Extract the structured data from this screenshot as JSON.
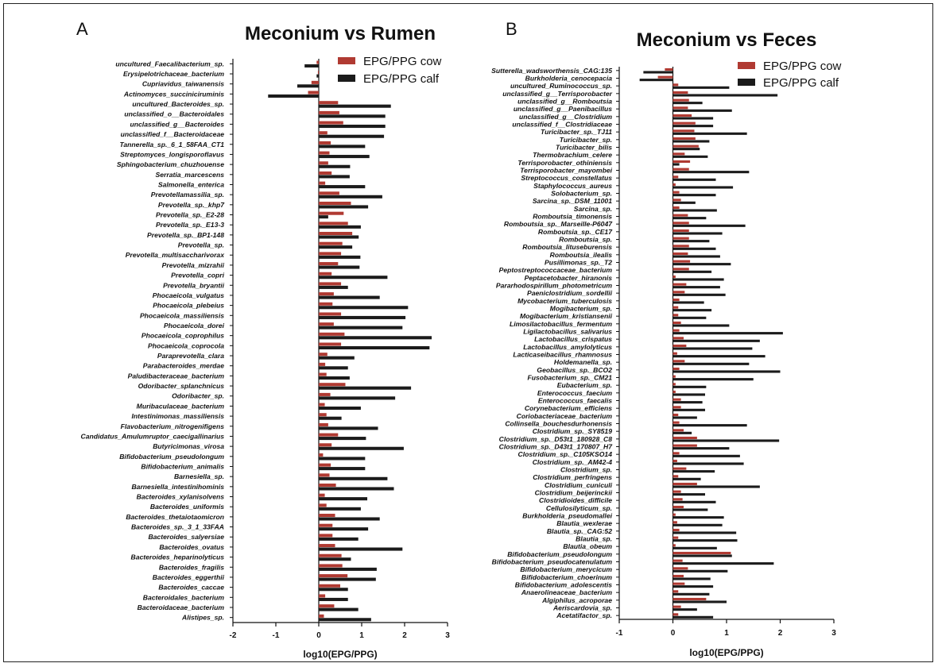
{
  "colors": {
    "cow": "#b03a32",
    "calf": "#1b1b1b"
  },
  "chart_data": [
    {
      "type": "bar",
      "orientation": "horizontal",
      "panel": "A",
      "title": "Meconium vs Rumen",
      "xlabel": "log10(EPG/PPG)",
      "xlim": [
        -2,
        3
      ],
      "xticks": [
        -2,
        -1,
        0,
        1,
        2,
        3
      ],
      "legend_position": "top-right",
      "series": [
        {
          "name": "EPG/PPG cow",
          "color": "#b03a32"
        },
        {
          "name": "EPG/PPG calf",
          "color": "#1b1b1b"
        }
      ],
      "categories": [
        {
          "label": "uncultured_Faecalibacterium_sp.",
          "cow": -0.05,
          "calf": -0.33
        },
        {
          "label": "Erysipelotrichaceae_bacterium",
          "cow": -0.02,
          "calf": -0.05
        },
        {
          "label": "Cupriavidus_taiwanensis",
          "cow": -0.17,
          "calf": -0.5
        },
        {
          "label": "Actinomyces_succiniciruminis",
          "cow": -0.25,
          "calf": -1.18
        },
        {
          "label": "uncultured_Bacteroides_sp.",
          "cow": 0.45,
          "calf": 1.68
        },
        {
          "label": "unclassified_o__Bacteroidales",
          "cow": 0.48,
          "calf": 1.55
        },
        {
          "label": "unclassified_g__Bacteroides",
          "cow": 0.57,
          "calf": 1.55
        },
        {
          "label": "unclassified_f__Bacteroidaceae",
          "cow": 0.2,
          "calf": 1.52
        },
        {
          "label": "Tannerella_sp._6_1_58FAA_CT1",
          "cow": 0.28,
          "calf": 1.08
        },
        {
          "label": "Streptomyces_longisporoflavus",
          "cow": 0.25,
          "calf": 1.18
        },
        {
          "label": "Sphingobacterium_chuzhouense",
          "cow": 0.22,
          "calf": 0.73
        },
        {
          "label": "Serratia_marcescens",
          "cow": 0.3,
          "calf": 0.72
        },
        {
          "label": "Salmonella_enterica",
          "cow": 0.15,
          "calf": 1.08
        },
        {
          "label": "Prevotellamassilia_sp.",
          "cow": 0.48,
          "calf": 1.48
        },
        {
          "label": "Prevotella_sp._khp7",
          "cow": 0.75,
          "calf": 1.15
        },
        {
          "label": "Prevotella_sp._E2-28",
          "cow": 0.58,
          "calf": 0.22
        },
        {
          "label": "Prevotella_sp._E13-3",
          "cow": 0.68,
          "calf": 0.98
        },
        {
          "label": "Prevotella_sp._BP1-148",
          "cow": 0.78,
          "calf": 0.93
        },
        {
          "label": "Prevotella_sp.",
          "cow": 0.55,
          "calf": 0.78
        },
        {
          "label": "Prevotella_multisaccharivorax",
          "cow": 0.52,
          "calf": 0.97
        },
        {
          "label": "Prevotella_mizrahii",
          "cow": 0.45,
          "calf": 0.95
        },
        {
          "label": "Prevotella_copri",
          "cow": 0.3,
          "calf": 1.6
        },
        {
          "label": "Prevotella_bryantii",
          "cow": 0.52,
          "calf": 0.68
        },
        {
          "label": "Phocaeicola_vulgatus",
          "cow": 0.35,
          "calf": 1.42
        },
        {
          "label": "Phocaeicola_plebeius",
          "cow": 0.32,
          "calf": 2.08
        },
        {
          "label": "Phocaeicola_massiliensis",
          "cow": 0.52,
          "calf": 2.02
        },
        {
          "label": "Phocaeicola_dorei",
          "cow": 0.35,
          "calf": 1.95
        },
        {
          "label": "Phocaeicola_coprophilus",
          "cow": 0.6,
          "calf": 2.63
        },
        {
          "label": "Phocaeicola_coprocola",
          "cow": 0.52,
          "calf": 2.58
        },
        {
          "label": "Paraprevotella_clara",
          "cow": 0.2,
          "calf": 0.83
        },
        {
          "label": "Parabacteroides_merdae",
          "cow": 0.15,
          "calf": 0.68
        },
        {
          "label": "Paludibacteraceae_bacterium",
          "cow": 0.18,
          "calf": 0.72
        },
        {
          "label": "Odoribacter_splanchnicus",
          "cow": 0.62,
          "calf": 2.15
        },
        {
          "label": "Odoribacter_sp.",
          "cow": 0.27,
          "calf": 1.78
        },
        {
          "label": "Muribaculaceae_bacterium",
          "cow": 0.14,
          "calf": 0.98
        },
        {
          "label": "Intestinimonas_massiliensis",
          "cow": 0.18,
          "calf": 0.53
        },
        {
          "label": "Flavobacterium_nitrogenifigens",
          "cow": 0.22,
          "calf": 1.38
        },
        {
          "label": "Candidatus_Amulumruptor_caecigallinarius",
          "cow": 0.45,
          "calf": 1.1
        },
        {
          "label": "Butyricimonas_virosa",
          "cow": 0.3,
          "calf": 1.98
        },
        {
          "label": "Bifidobacterium_pseudolongum",
          "cow": 0.1,
          "calf": 1.08
        },
        {
          "label": "Bifidobacterium_animalis",
          "cow": 0.28,
          "calf": 1.08
        },
        {
          "label": "Barnesiella_sp.",
          "cow": 0.25,
          "calf": 1.6
        },
        {
          "label": "Barnesiella_intestinihominis",
          "cow": 0.4,
          "calf": 1.75
        },
        {
          "label": "Bacteroides_xylanisolvens",
          "cow": 0.14,
          "calf": 1.13
        },
        {
          "label": "Bacteroides_uniformis",
          "cow": 0.18,
          "calf": 0.98
        },
        {
          "label": "Bacteroides_thetaiotaomicron",
          "cow": 0.38,
          "calf": 1.42
        },
        {
          "label": "Bacteroides_sp._3_1_33FAA",
          "cow": 0.32,
          "calf": 1.15
        },
        {
          "label": "Bacteroides_salyersiae",
          "cow": 0.32,
          "calf": 0.92
        },
        {
          "label": "Bacteroides_ovatus",
          "cow": 0.38,
          "calf": 1.95
        },
        {
          "label": "Bacteroides_heparinolyticus",
          "cow": 0.53,
          "calf": 0.75
        },
        {
          "label": "Bacteroides_fragilis",
          "cow": 0.55,
          "calf": 1.35
        },
        {
          "label": "Bacteroides_eggerthii",
          "cow": 0.67,
          "calf": 1.33
        },
        {
          "label": "Bacteroides_caccae",
          "cow": 0.5,
          "calf": 0.68
        },
        {
          "label": "Bacteroidales_bacterium",
          "cow": 0.15,
          "calf": 0.68
        },
        {
          "label": "Bacteroidaceae_bacterium",
          "cow": 0.36,
          "calf": 0.92
        },
        {
          "label": "Alistipes_sp.",
          "cow": 0.12,
          "calf": 1.22
        }
      ]
    },
    {
      "type": "bar",
      "orientation": "horizontal",
      "panel": "B",
      "title": "Meconium vs Feces",
      "xlabel": "log10(EPG/PPG)",
      "xlim": [
        -1,
        3
      ],
      "xticks": [
        -1,
        0,
        1,
        2,
        3
      ],
      "legend_position": "top-right",
      "series": [
        {
          "name": "EPG/PPG cow",
          "color": "#b03a32"
        },
        {
          "name": "EPG/PPG calf",
          "color": "#1b1b1b"
        }
      ],
      "categories": [
        {
          "label": "Sutterella_wadsworthensis_CAG:135",
          "cow": -0.15,
          "calf": -0.55
        },
        {
          "label": "Burkholderia_cenocepacia",
          "cow": -0.28,
          "calf": -0.62
        },
        {
          "label": "uncultured_Ruminococcus_sp.",
          "cow": 0.1,
          "calf": 1.05
        },
        {
          "label": "unclassified_g__Terrisporobacter",
          "cow": 0.28,
          "calf": 1.95
        },
        {
          "label": "unclassified_g__Romboutsia",
          "cow": 0.3,
          "calf": 0.55
        },
        {
          "label": "unclassified_g__Paenibacillus",
          "cow": 0.28,
          "calf": 1.1
        },
        {
          "label": "unclassified_g__Clostridium",
          "cow": 0.35,
          "calf": 0.75
        },
        {
          "label": "unclassified_f__Clostridiaceae",
          "cow": 0.42,
          "calf": 0.75
        },
        {
          "label": "Turicibacter_sp._TJ11",
          "cow": 0.4,
          "calf": 1.38
        },
        {
          "label": "Turicibacter_sp.",
          "cow": 0.42,
          "calf": 0.68
        },
        {
          "label": "Turicibacter_bilis",
          "cow": 0.48,
          "calf": 0.5
        },
        {
          "label": "Thermobrachium_celere",
          "cow": 0.22,
          "calf": 0.65
        },
        {
          "label": "Terrisporobacter_othiniensis",
          "cow": 0.32,
          "calf": 0.12
        },
        {
          "label": "Terrisporobacter_mayombei",
          "cow": 0.3,
          "calf": 1.42
        },
        {
          "label": "Streptococcus_constellatus",
          "cow": 0.1,
          "calf": 0.8
        },
        {
          "label": "Staphylococcus_aureus",
          "cow": 0.05,
          "calf": 1.12
        },
        {
          "label": "Solobacterium_sp.",
          "cow": 0.12,
          "calf": 0.8
        },
        {
          "label": "Sarcina_sp._DSM_11001",
          "cow": 0.15,
          "calf": 0.42
        },
        {
          "label": "Sarcina_sp.",
          "cow": 0.12,
          "calf": 0.82
        },
        {
          "label": "Romboutsia_timonensis",
          "cow": 0.28,
          "calf": 0.62
        },
        {
          "label": "Romboutsia_sp._Marseille-P6047",
          "cow": 0.3,
          "calf": 1.35
        },
        {
          "label": "Romboutsia_sp._CE17",
          "cow": 0.3,
          "calf": 0.92
        },
        {
          "label": "Romboutsia_sp.",
          "cow": 0.3,
          "calf": 0.68
        },
        {
          "label": "Romboutsia_lituseburensis",
          "cow": 0.3,
          "calf": 0.8
        },
        {
          "label": "Romboutsia_ilealis",
          "cow": 0.28,
          "calf": 0.88
        },
        {
          "label": "Pusillimonas_sp._T2",
          "cow": 0.32,
          "calf": 1.08
        },
        {
          "label": "Peptostreptococcaceae_bacterium",
          "cow": 0.3,
          "calf": 0.72
        },
        {
          "label": "Peptacetobacter_hiranonis",
          "cow": 0.05,
          "calf": 0.95
        },
        {
          "label": "Pararhodospirillum_photometricum",
          "cow": 0.25,
          "calf": 0.88
        },
        {
          "label": "Paeniclostridium_sordellii",
          "cow": 0.22,
          "calf": 0.98
        },
        {
          "label": "Mycobacterium_tuberculosis",
          "cow": 0.12,
          "calf": 0.58
        },
        {
          "label": "Mogibacterium_sp.",
          "cow": 0.1,
          "calf": 0.72
        },
        {
          "label": "Mogibacterium_kristiansenii",
          "cow": 0.1,
          "calf": 0.62
        },
        {
          "label": "Limosilactobacillus_fermentum",
          "cow": 0.15,
          "calf": 1.05
        },
        {
          "label": "Ligilactobacillus_salivarius",
          "cow": 0.12,
          "calf": 2.05
        },
        {
          "label": "Lactobacillus_crispatus",
          "cow": 0.2,
          "calf": 1.62
        },
        {
          "label": "Lactobacillus_amylolyticus",
          "cow": 0.25,
          "calf": 1.48
        },
        {
          "label": "Lacticaseibacillus_rhamnosus",
          "cow": 0.08,
          "calf": 1.72
        },
        {
          "label": "Holdemanella_sp.",
          "cow": 0.22,
          "calf": 1.42
        },
        {
          "label": "Geobacillus_sp._BCO2",
          "cow": 0.12,
          "calf": 2.0
        },
        {
          "label": "Fusobacterium_sp._CM21",
          "cow": 0.05,
          "calf": 1.5
        },
        {
          "label": "Eubacterium_sp.",
          "cow": 0.05,
          "calf": 0.62
        },
        {
          "label": "Enterococcus_faecium",
          "cow": 0.05,
          "calf": 0.6
        },
        {
          "label": "Enterococcus_faecalis",
          "cow": 0.15,
          "calf": 0.55
        },
        {
          "label": "Corynebacterium_efficiens",
          "cow": 0.15,
          "calf": 0.6
        },
        {
          "label": "Coriobacteriaceae_bacterium",
          "cow": 0.1,
          "calf": 0.45
        },
        {
          "label": "Collinsella_bouchesdurhonensis",
          "cow": 0.12,
          "calf": 1.38
        },
        {
          "label": "Clostridium_sp._SY8519",
          "cow": 0.2,
          "calf": 0.35
        },
        {
          "label": "Clostridium_sp._D53t1_180928_C8",
          "cow": 0.45,
          "calf": 1.98
        },
        {
          "label": "Clostridium_sp._D43t1_170807_H7",
          "cow": 0.45,
          "calf": 1.05
        },
        {
          "label": "Clostridium_sp._C105KSO14",
          "cow": 0.12,
          "calf": 1.25
        },
        {
          "label": "Clostridium_sp._AM42-4",
          "cow": 0.08,
          "calf": 1.32
        },
        {
          "label": "Clostridium_sp.",
          "cow": 0.25,
          "calf": 0.78
        },
        {
          "label": "Clostridium_perfringens",
          "cow": 0.1,
          "calf": 0.52
        },
        {
          "label": "Clostridium_cuniculi",
          "cow": 0.45,
          "calf": 1.62
        },
        {
          "label": "Clostridium_beijerinckii",
          "cow": 0.15,
          "calf": 0.6
        },
        {
          "label": "Clostridioides_difficile",
          "cow": 0.18,
          "calf": 0.8
        },
        {
          "label": "Cellulosilyticum_sp.",
          "cow": 0.2,
          "calf": 0.65
        },
        {
          "label": "Burkholderia_pseudomallei",
          "cow": 0.05,
          "calf": 0.95
        },
        {
          "label": "Blautia_wexlerae",
          "cow": 0.08,
          "calf": 0.92
        },
        {
          "label": "Blautia_sp._CAG:52",
          "cow": 0.12,
          "calf": 1.18
        },
        {
          "label": "Blautia_sp.",
          "cow": 0.1,
          "calf": 1.2
        },
        {
          "label": "Blautia_obeum",
          "cow": 0.05,
          "calf": 0.82
        },
        {
          "label": "Bifidobacterium_pseudolongum",
          "cow": 1.08,
          "calf": 1.1
        },
        {
          "label": "Bifidobacterium_pseudocatenulatum",
          "cow": 0.18,
          "calf": 1.88
        },
        {
          "label": "Bifidobacterium_merycicum",
          "cow": 0.28,
          "calf": 1.02
        },
        {
          "label": "Bifidobacterium_choerinum",
          "cow": 0.2,
          "calf": 0.7
        },
        {
          "label": "Bifidobacterium_adolescentis",
          "cow": 0.22,
          "calf": 0.75
        },
        {
          "label": "Anaerolineaceae_bacterium",
          "cow": 0.1,
          "calf": 0.68
        },
        {
          "label": "Algiphilus_acroporae",
          "cow": 0.62,
          "calf": 1.0
        },
        {
          "label": "Aeriscardovia_sp.",
          "cow": 0.15,
          "calf": 0.45
        },
        {
          "label": "Acetatifactor_sp.",
          "cow": 0.1,
          "calf": 0.75
        }
      ]
    }
  ]
}
